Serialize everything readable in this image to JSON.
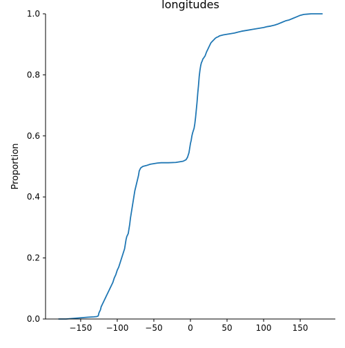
{
  "chart_data": {
    "type": "line",
    "title": "longitudes",
    "xlabel": "",
    "ylabel": "Proportion",
    "xlim": [
      -198,
      198
    ],
    "ylim": [
      0,
      1
    ],
    "xticks": [
      -150,
      -100,
      -50,
      0,
      50,
      100,
      150
    ],
    "yticks": [
      0.0,
      0.2,
      0.4,
      0.6,
      0.8,
      1.0
    ],
    "xtick_labels": [
      "−150",
      "−100",
      "−50",
      "0",
      "50",
      "100",
      "150"
    ],
    "ytick_labels": [
      "0.0",
      "0.2",
      "0.4",
      "0.6",
      "0.8",
      "1.0"
    ],
    "grid": false,
    "line_color": "#1f77b4",
    "series": [
      {
        "x": [
          -180,
          -170,
          -160,
          -150,
          -140,
          -132,
          -128,
          -126,
          -125,
          -123,
          -122,
          -120,
          -118,
          -116,
          -114,
          -112,
          -110,
          -108,
          -106,
          -104,
          -102,
          -100,
          -98,
          -96,
          -94,
          -92,
          -90,
          -89,
          -88,
          -87,
          -85,
          -84,
          -83,
          -82,
          -80,
          -78,
          -76,
          -74,
          -72,
          -71,
          -70,
          -68,
          -65,
          -60,
          -55,
          -50,
          -45,
          -40,
          -35,
          -30,
          -20,
          -15,
          -10,
          -6,
          -4,
          -2,
          -1,
          0,
          1,
          2,
          3,
          5,
          6,
          7,
          8,
          9,
          10,
          11,
          12,
          13,
          14,
          15,
          16,
          17,
          18,
          20,
          22,
          24,
          26,
          28,
          30,
          32,
          34,
          36,
          38,
          40,
          45,
          50,
          55,
          60,
          65,
          70,
          75,
          80,
          85,
          90,
          95,
          100,
          105,
          110,
          115,
          120,
          125,
          130,
          135,
          140,
          145,
          150,
          155,
          160,
          165,
          170,
          175,
          180
        ],
        "y": [
          0.0,
          0.0,
          0.002,
          0.004,
          0.006,
          0.007,
          0.008,
          0.01,
          0.02,
          0.03,
          0.04,
          0.05,
          0.06,
          0.07,
          0.08,
          0.09,
          0.1,
          0.11,
          0.12,
          0.135,
          0.145,
          0.16,
          0.17,
          0.185,
          0.2,
          0.215,
          0.23,
          0.245,
          0.26,
          0.27,
          0.28,
          0.295,
          0.31,
          0.33,
          0.36,
          0.39,
          0.42,
          0.44,
          0.46,
          0.47,
          0.485,
          0.495,
          0.5,
          0.503,
          0.507,
          0.509,
          0.511,
          0.512,
          0.512,
          0.512,
          0.513,
          0.515,
          0.517,
          0.522,
          0.53,
          0.545,
          0.56,
          0.575,
          0.585,
          0.6,
          0.61,
          0.625,
          0.64,
          0.66,
          0.685,
          0.71,
          0.74,
          0.765,
          0.795,
          0.815,
          0.83,
          0.84,
          0.845,
          0.852,
          0.855,
          0.862,
          0.875,
          0.885,
          0.895,
          0.905,
          0.91,
          0.915,
          0.92,
          0.923,
          0.925,
          0.928,
          0.931,
          0.933,
          0.935,
          0.937,
          0.94,
          0.943,
          0.945,
          0.947,
          0.949,
          0.951,
          0.953,
          0.955,
          0.958,
          0.96,
          0.963,
          0.967,
          0.972,
          0.977,
          0.98,
          0.985,
          0.99,
          0.995,
          0.998,
          0.999,
          1.0,
          1.0,
          1.0,
          1.0
        ]
      }
    ]
  }
}
